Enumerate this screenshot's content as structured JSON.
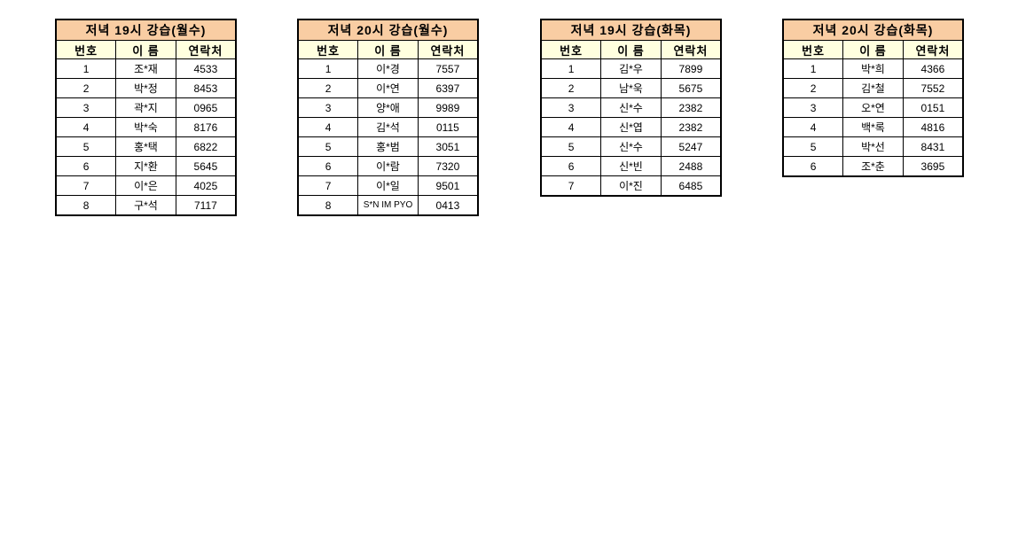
{
  "colors": {
    "title_bg": "#f9cda3",
    "header_bg": "#ffffdf",
    "border": "#000000",
    "text": "#000000",
    "page_bg": "#ffffff"
  },
  "columns": [
    "번호",
    "이 름",
    "연락처"
  ],
  "tables": [
    {
      "title": "저녁 19시 강습(월수)",
      "rows": [
        [
          "1",
          "조*재",
          "4533"
        ],
        [
          "2",
          "박*정",
          "8453"
        ],
        [
          "3",
          "곽*지",
          "0965"
        ],
        [
          "4",
          "박*숙",
          "8176"
        ],
        [
          "5",
          "홍*택",
          "6822"
        ],
        [
          "6",
          "지*환",
          "5645"
        ],
        [
          "7",
          "이*은",
          "4025"
        ],
        [
          "8",
          "구*석",
          "7117"
        ]
      ]
    },
    {
      "title": "저녁 20시 강습(월수)",
      "rows": [
        [
          "1",
          "이*경",
          "7557"
        ],
        [
          "2",
          "이*연",
          "6397"
        ],
        [
          "3",
          "양*애",
          "9989"
        ],
        [
          "4",
          "김*석",
          "0115"
        ],
        [
          "5",
          "홍*범",
          "3051"
        ],
        [
          "6",
          "이*람",
          "7320"
        ],
        [
          "7",
          "이*일",
          "9501"
        ],
        [
          "8",
          "S*N IM PYO",
          "0413"
        ]
      ]
    },
    {
      "title": "저녁 19시 강습(화목)",
      "rows": [
        [
          "1",
          "김*우",
          "7899"
        ],
        [
          "2",
          "남*욱",
          "5675"
        ],
        [
          "3",
          "신*수",
          "2382"
        ],
        [
          "4",
          "신*엽",
          "2382"
        ],
        [
          "5",
          "신*수",
          "5247"
        ],
        [
          "6",
          "신*빈",
          "2488"
        ],
        [
          "7",
          "이*진",
          "6485"
        ]
      ]
    },
    {
      "title": "저녁 20시 강습(화목)",
      "rows": [
        [
          "1",
          "박*희",
          "4366"
        ],
        [
          "2",
          "김*철",
          "7552"
        ],
        [
          "3",
          "오*연",
          "0151"
        ],
        [
          "4",
          "백*록",
          "4816"
        ],
        [
          "5",
          "박*선",
          "8431"
        ],
        [
          "6",
          "조*춘",
          "3695"
        ]
      ]
    }
  ]
}
